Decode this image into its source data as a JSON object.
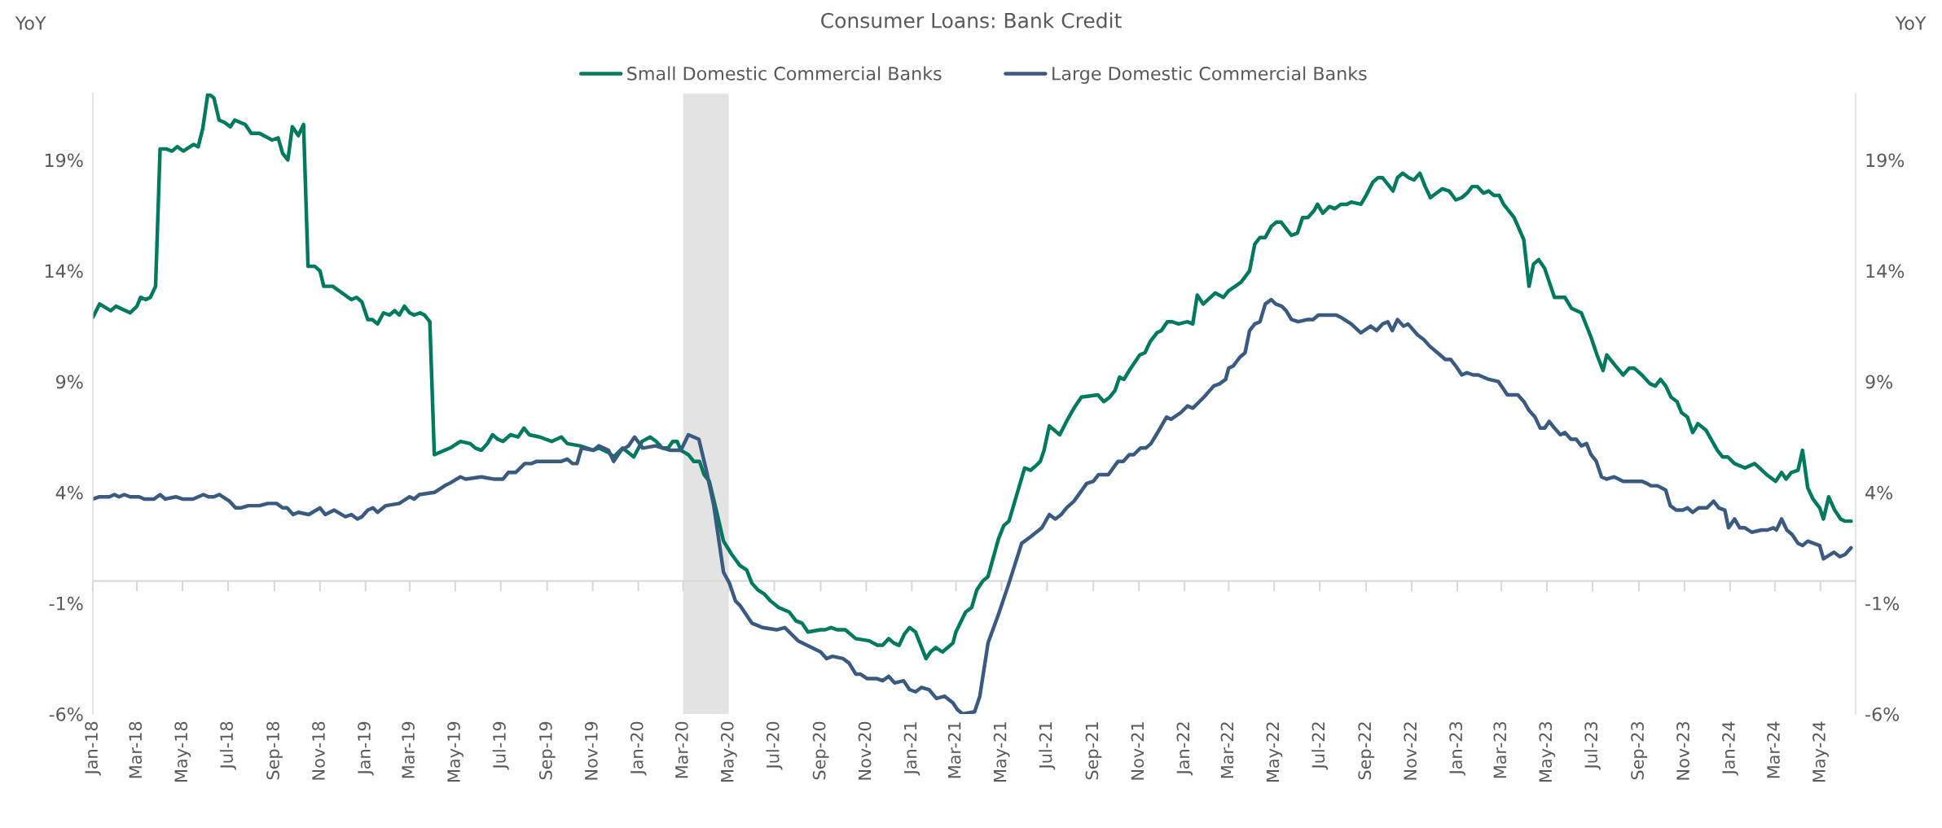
{
  "chart_data": {
    "type": "line",
    "title": "Consumer Loans: Bank Credit",
    "ylabel": "YoY",
    "y2label": "YoY",
    "xlim": [
      "2018-01-01",
      "2024-06-17"
    ],
    "xticks": [
      {
        "value": "2018-01",
        "label": "Jan-18"
      },
      {
        "value": "2018-03",
        "label": "Mar-18"
      },
      {
        "value": "2018-05",
        "label": "May-18"
      },
      {
        "value": "2018-07",
        "label": "Jul-18"
      },
      {
        "value": "2018-09",
        "label": "Sep-18"
      },
      {
        "value": "2018-11",
        "label": "Nov-18"
      },
      {
        "value": "2019-01",
        "label": "Jan-19"
      },
      {
        "value": "2019-03",
        "label": "Mar-19"
      },
      {
        "value": "2019-05",
        "label": "May-19"
      },
      {
        "value": "2019-07",
        "label": "Jul-19"
      },
      {
        "value": "2019-09",
        "label": "Sep-19"
      },
      {
        "value": "2019-11",
        "label": "Nov-19"
      },
      {
        "value": "2020-01",
        "label": "Jan-20"
      },
      {
        "value": "2020-03",
        "label": "Mar-20"
      },
      {
        "value": "2020-05",
        "label": "May-20"
      },
      {
        "value": "2020-07",
        "label": "Jul-20"
      },
      {
        "value": "2020-09",
        "label": "Sep-20"
      },
      {
        "value": "2020-11",
        "label": "Nov-20"
      },
      {
        "value": "2021-01",
        "label": "Jan-21"
      },
      {
        "value": "2021-03",
        "label": "Mar-21"
      },
      {
        "value": "2021-05",
        "label": "May-21"
      },
      {
        "value": "2021-07",
        "label": "Jul-21"
      },
      {
        "value": "2021-09",
        "label": "Sep-21"
      },
      {
        "value": "2021-11",
        "label": "Nov-21"
      },
      {
        "value": "2022-01",
        "label": "Jan-22"
      },
      {
        "value": "2022-03",
        "label": "Mar-22"
      },
      {
        "value": "2022-05",
        "label": "May-22"
      },
      {
        "value": "2022-07",
        "label": "Jul-22"
      },
      {
        "value": "2022-09",
        "label": "Sep-22"
      },
      {
        "value": "2022-11",
        "label": "Nov-22"
      },
      {
        "value": "2023-01",
        "label": "Jan-23"
      },
      {
        "value": "2023-03",
        "label": "Mar-23"
      },
      {
        "value": "2023-05",
        "label": "May-23"
      },
      {
        "value": "2023-07",
        "label": "Jul-23"
      },
      {
        "value": "2023-09",
        "label": "Sep-23"
      },
      {
        "value": "2023-11",
        "label": "Nov-23"
      },
      {
        "value": "2024-01",
        "label": "Jan-24"
      },
      {
        "value": "2024-03",
        "label": "Mar-24"
      },
      {
        "value": "2024-05",
        "label": "May-24"
      }
    ],
    "ylim": [
      -6,
      22
    ],
    "yticks": [
      {
        "value": -6,
        "label": "-6%"
      },
      {
        "value": -1,
        "label": "-1%"
      },
      {
        "value": 4,
        "label": "4%"
      },
      {
        "value": 9,
        "label": "9%"
      },
      {
        "value": 14,
        "label": "14%"
      },
      {
        "value": 19,
        "label": "19%"
      }
    ],
    "y2lim": [
      -6,
      22
    ],
    "y2ticks": [
      {
        "value": -6,
        "label": "-6%"
      },
      {
        "value": -1,
        "label": "-1%"
      },
      {
        "value": 4,
        "label": "4%"
      },
      {
        "value": 9,
        "label": "9%"
      },
      {
        "value": 14,
        "label": "14%"
      },
      {
        "value": 19,
        "label": "19%"
      }
    ],
    "bands": [
      {
        "axis": "x",
        "from": "2020-03-01",
        "to": "2020-05-01",
        "color": "#e3e3e3"
      }
    ],
    "grid": false,
    "legend": "top",
    "line_style": "solid",
    "marker": "none",
    "series": [
      {
        "name": "Small Domestic Commercial Banks",
        "color": "#007a5e",
        "x": [
          "2018-01-01",
          "2018-01-10",
          "2018-01-25",
          "2018-02-01",
          "2018-02-20",
          "2018-03-01",
          "2018-03-06",
          "2018-03-13",
          "2018-03-19",
          "2018-03-26",
          "2018-04-01",
          "2018-04-09",
          "2018-04-17",
          "2018-04-24",
          "2018-05-02",
          "2018-05-16",
          "2018-05-22",
          "2018-05-28",
          "2018-06-04",
          "2018-06-12",
          "2018-06-19",
          "2018-06-26",
          "2018-07-04",
          "2018-07-10",
          "2018-07-24",
          "2018-08-01",
          "2018-08-12",
          "2018-08-29",
          "2018-09-06",
          "2018-09-12",
          "2018-09-19",
          "2018-09-25",
          "2018-10-03",
          "2018-10-10",
          "2018-10-16",
          "2018-10-25",
          "2018-11-01",
          "2018-11-06",
          "2018-11-18",
          "2018-12-13",
          "2018-12-20",
          "2018-12-27",
          "2019-01-04",
          "2019-01-10",
          "2019-01-17",
          "2019-01-25",
          "2019-02-02",
          "2019-02-09",
          "2019-02-15",
          "2019-02-22",
          "2019-03-01",
          "2019-03-07",
          "2019-03-15",
          "2019-03-21",
          "2019-03-28",
          "2019-04-03",
          "2019-04-17",
          "2019-04-24",
          "2019-05-08",
          "2019-05-21",
          "2019-05-28",
          "2019-06-05",
          "2019-06-13",
          "2019-06-20",
          "2019-06-27",
          "2019-07-04",
          "2019-07-14",
          "2019-07-24",
          "2019-08-01",
          "2019-08-08",
          "2019-08-22",
          "2019-09-07",
          "2019-09-20",
          "2019-09-28",
          "2019-10-15",
          "2019-11-02",
          "2019-11-09",
          "2019-11-22",
          "2019-11-29",
          "2019-12-11",
          "2019-12-26",
          "2020-01-06",
          "2020-01-17",
          "2020-01-25",
          "2020-02-02",
          "2020-02-10",
          "2020-02-16",
          "2020-02-22",
          "2020-02-27",
          "2020-03-08",
          "2020-03-15",
          "2020-03-23",
          "2020-03-29",
          "2020-04-05",
          "2020-04-15",
          "2020-04-24",
          "2020-05-05",
          "2020-05-16",
          "2020-05-25",
          "2020-06-01",
          "2020-06-09",
          "2020-06-18",
          "2020-06-26",
          "2020-07-07",
          "2020-07-21",
          "2020-07-30",
          "2020-08-07",
          "2020-08-15",
          "2020-09-01",
          "2020-09-07",
          "2020-09-15",
          "2020-09-23",
          "2020-10-04",
          "2020-10-18",
          "2020-11-05",
          "2020-11-16",
          "2020-11-23",
          "2020-12-01",
          "2020-12-08",
          "2020-12-15",
          "2020-12-22",
          "2020-12-29",
          "2021-01-06",
          "2021-01-13",
          "2021-01-20",
          "2021-01-26",
          "2021-02-02",
          "2021-02-11",
          "2021-02-25",
          "2021-03-01",
          "2021-03-14",
          "2021-03-22",
          "2021-03-29",
          "2021-04-06",
          "2021-04-13",
          "2021-04-27",
          "2021-05-04",
          "2021-05-11",
          "2021-06-01",
          "2021-06-09",
          "2021-06-16",
          "2021-06-22",
          "2021-06-27",
          "2021-07-04",
          "2021-07-18",
          "2021-07-27",
          "2021-08-06",
          "2021-08-16",
          "2021-09-07",
          "2021-09-15",
          "2021-09-23",
          "2021-09-30",
          "2021-10-06",
          "2021-10-12",
          "2021-10-19",
          "2021-11-02",
          "2021-11-09",
          "2021-11-16",
          "2021-11-25",
          "2021-12-01",
          "2021-12-09",
          "2021-12-15",
          "2021-12-24",
          "2022-01-05",
          "2022-01-12",
          "2022-01-18",
          "2022-01-26",
          "2022-02-11",
          "2022-02-22",
          "2022-03-01",
          "2022-03-10",
          "2022-03-18",
          "2022-03-29",
          "2022-04-05",
          "2022-04-12",
          "2022-04-19",
          "2022-04-27",
          "2022-05-04",
          "2022-05-10",
          "2022-05-17",
          "2022-05-24",
          "2022-06-01",
          "2022-06-08",
          "2022-06-15",
          "2022-06-23",
          "2022-06-28",
          "2022-07-05",
          "2022-07-14",
          "2022-07-21",
          "2022-07-29",
          "2022-08-06",
          "2022-08-12",
          "2022-08-25",
          "2022-09-01",
          "2022-09-10",
          "2022-09-17",
          "2022-09-23",
          "2022-09-30",
          "2022-10-07",
          "2022-10-13",
          "2022-10-20",
          "2022-10-28",
          "2022-11-04",
          "2022-11-12",
          "2022-11-19",
          "2022-11-26",
          "2022-12-04",
          "2022-12-12",
          "2022-12-21",
          "2022-12-30",
          "2023-01-07",
          "2023-01-14",
          "2023-01-21",
          "2023-01-28",
          "2023-02-05",
          "2023-02-12",
          "2023-02-19",
          "2023-02-26",
          "2023-03-04",
          "2023-03-18",
          "2023-03-22",
          "2023-03-31",
          "2023-04-07",
          "2023-04-13",
          "2023-04-20",
          "2023-04-28",
          "2023-05-11",
          "2023-05-25",
          "2023-06-03",
          "2023-06-16",
          "2023-06-29",
          "2023-07-07",
          "2023-07-15",
          "2023-07-20",
          "2023-08-01",
          "2023-08-11",
          "2023-08-19",
          "2023-08-26",
          "2023-09-05",
          "2023-09-16",
          "2023-09-23",
          "2023-09-30",
          "2023-10-07",
          "2023-10-14",
          "2023-10-22",
          "2023-10-28",
          "2023-11-05",
          "2023-11-12",
          "2023-11-19",
          "2023-11-30",
          "2023-12-15",
          "2023-12-22",
          "2023-12-29",
          "2024-01-07",
          "2024-01-21",
          "2024-02-03",
          "2024-02-19",
          "2024-03-02",
          "2024-03-10",
          "2024-03-16",
          "2024-03-23",
          "2024-04-01",
          "2024-04-07",
          "2024-04-14",
          "2024-04-21",
          "2024-04-30",
          "2024-05-05",
          "2024-05-12",
          "2024-05-20",
          "2024-05-28",
          "2024-06-03",
          "2024-06-11"
        ],
        "values": [
          11.9,
          12.5,
          12.2,
          12.4,
          12.1,
          12.4,
          12.8,
          12.7,
          12.8,
          13.3,
          19.5,
          19.5,
          19.4,
          19.6,
          19.4,
          19.7,
          19.6,
          20.4,
          22.0,
          21.8,
          20.8,
          20.7,
          20.5,
          20.8,
          20.6,
          20.2,
          20.2,
          19.9,
          20.0,
          19.3,
          19.0,
          20.5,
          20.1,
          20.6,
          14.2,
          14.2,
          14.0,
          13.3,
          13.3,
          12.7,
          12.8,
          12.6,
          11.8,
          11.8,
          11.6,
          12.1,
          12.0,
          12.2,
          12.0,
          12.4,
          12.1,
          12.0,
          12.1,
          12.0,
          11.7,
          5.7,
          5.9,
          6.0,
          6.3,
          6.2,
          6.0,
          5.9,
          6.2,
          6.6,
          6.4,
          6.3,
          6.6,
          6.5,
          6.9,
          6.6,
          6.5,
          6.3,
          6.5,
          6.2,
          6.1,
          5.9,
          6.0,
          5.8,
          5.6,
          6.0,
          5.6,
          6.3,
          6.5,
          6.3,
          6.0,
          6.0,
          6.3,
          6.3,
          5.9,
          5.7,
          5.4,
          5.4,
          4.8,
          4.5,
          3.1,
          1.8,
          1.2,
          0.7,
          0.5,
          -0.1,
          -0.4,
          -0.6,
          -0.9,
          -1.2,
          -1.4,
          -1.8,
          -1.9,
          -2.3,
          -2.2,
          -2.2,
          -2.1,
          -2.2,
          -2.2,
          -2.6,
          -2.7,
          -2.9,
          -2.9,
          -2.6,
          -2.8,
          -2.9,
          -2.4,
          -2.1,
          -2.3,
          -2.9,
          -3.5,
          -3.2,
          -3.0,
          -3.2,
          -2.8,
          -2.3,
          -1.4,
          -1.2,
          -0.4,
          0.0,
          0.2,
          1.9,
          2.5,
          2.7,
          5.1,
          5.0,
          5.2,
          5.4,
          5.9,
          7.0,
          6.6,
          7.2,
          7.8,
          8.3,
          8.4,
          8.1,
          8.3,
          8.6,
          9.2,
          9.1,
          9.5,
          10.2,
          10.3,
          10.8,
          11.2,
          11.3,
          11.7,
          11.7,
          11.6,
          11.7,
          11.6,
          12.9,
          12.5,
          13.0,
          12.8,
          13.1,
          13.3,
          13.5,
          14.0,
          15.2,
          15.5,
          15.5,
          16.0,
          16.2,
          16.2,
          15.9,
          15.6,
          15.7,
          16.4,
          16.4,
          16.7,
          17.0,
          16.6,
          16.9,
          16.8,
          17.0,
          17.0,
          17.1,
          17.0,
          17.4,
          18.0,
          18.2,
          18.2,
          17.9,
          17.6,
          18.2,
          18.4,
          18.2,
          18.1,
          18.4,
          17.8,
          17.3,
          17.5,
          17.7,
          17.6,
          17.2,
          17.3,
          17.5,
          17.8,
          17.8,
          17.5,
          17.6,
          17.4,
          17.4,
          17.0,
          16.4,
          16.1,
          15.4,
          13.3,
          14.3,
          14.5,
          14.1,
          12.8,
          12.8,
          12.3,
          12.1,
          11.0,
          10.2,
          9.5,
          10.2,
          9.7,
          9.3,
          9.6,
          9.6,
          9.3,
          8.9,
          8.8,
          9.1,
          8.8,
          8.3,
          8.1,
          7.6,
          7.4,
          6.7,
          7.1,
          6.8,
          5.9,
          5.6,
          5.6,
          5.3,
          5.1,
          5.3,
          4.8,
          4.5,
          4.9,
          4.6,
          4.9,
          5.0,
          5.9,
          4.2,
          3.7,
          3.3,
          2.8,
          3.8,
          3.2,
          2.8,
          2.7,
          2.7
        ]
      },
      {
        "name": "Large Domestic Commercial Banks",
        "color": "#3a5a7f",
        "x": [
          "2018-01-01",
          "2018-01-10",
          "2018-01-23",
          "2018-01-30",
          "2018-02-05",
          "2018-02-12",
          "2018-02-20",
          "2018-03-04",
          "2018-03-11",
          "2018-03-24",
          "2018-04-01",
          "2018-04-08",
          "2018-04-22",
          "2018-05-01",
          "2018-05-15",
          "2018-05-29",
          "2018-06-05",
          "2018-06-12",
          "2018-06-19",
          "2018-07-03",
          "2018-07-11",
          "2018-07-18",
          "2018-07-28",
          "2018-08-12",
          "2018-08-23",
          "2018-09-04",
          "2018-09-12",
          "2018-09-18",
          "2018-09-26",
          "2018-10-03",
          "2018-10-17",
          "2018-11-01",
          "2018-11-08",
          "2018-11-20",
          "2018-12-05",
          "2018-12-13",
          "2018-12-21",
          "2018-12-27",
          "2019-01-04",
          "2019-01-11",
          "2019-01-17",
          "2019-01-28",
          "2019-02-15",
          "2019-03-01",
          "2019-03-07",
          "2019-03-14",
          "2019-04-03",
          "2019-04-17",
          "2019-04-23",
          "2019-05-08",
          "2019-05-15",
          "2019-06-05",
          "2019-06-21",
          "2019-07-04",
          "2019-07-11",
          "2019-07-21",
          "2019-08-02",
          "2019-08-11",
          "2019-08-18",
          "2019-08-28",
          "2019-09-07",
          "2019-09-20",
          "2019-09-28",
          "2019-10-05",
          "2019-10-11",
          "2019-10-17",
          "2019-11-02",
          "2019-11-09",
          "2019-11-22",
          "2019-11-29",
          "2019-12-09",
          "2019-12-19",
          "2019-12-27",
          "2020-01-07",
          "2020-01-24",
          "2020-02-03",
          "2020-02-13",
          "2020-02-27",
          "2020-03-08",
          "2020-03-22",
          "2020-04-01",
          "2020-04-11",
          "2020-04-24",
          "2020-05-02",
          "2020-05-10",
          "2020-05-16",
          "2020-06-01",
          "2020-06-15",
          "2020-07-04",
          "2020-07-15",
          "2020-08-02",
          "2020-09-01",
          "2020-09-09",
          "2020-09-17",
          "2020-10-01",
          "2020-10-09",
          "2020-10-18",
          "2020-10-24",
          "2020-11-02",
          "2020-11-15",
          "2020-11-23",
          "2020-12-01",
          "2020-12-09",
          "2020-12-21",
          "2020-12-29",
          "2021-01-06",
          "2021-01-14",
          "2021-01-24",
          "2021-02-03",
          "2021-02-14",
          "2021-02-25",
          "2021-03-03",
          "2021-03-10",
          "2021-03-26",
          "2021-04-02",
          "2021-04-13",
          "2021-04-27",
          "2021-05-11",
          "2021-05-28",
          "2021-06-09",
          "2021-06-24",
          "2021-07-04",
          "2021-07-12",
          "2021-07-20",
          "2021-07-27",
          "2021-08-06",
          "2021-08-23",
          "2021-09-01",
          "2021-09-08",
          "2021-09-16",
          "2021-09-21",
          "2021-10-04",
          "2021-10-11",
          "2021-10-19",
          "2021-10-25",
          "2021-11-03",
          "2021-11-10",
          "2021-11-17",
          "2021-11-26",
          "2021-12-08",
          "2021-12-14",
          "2021-12-27",
          "2022-01-05",
          "2022-01-12",
          "2022-01-27",
          "2022-02-09",
          "2022-02-17",
          "2022-02-25",
          "2022-03-01",
          "2022-03-07",
          "2022-03-16",
          "2022-03-23",
          "2022-03-29",
          "2022-04-05",
          "2022-04-12",
          "2022-04-19",
          "2022-04-27",
          "2022-05-03",
          "2022-05-11",
          "2022-05-17",
          "2022-05-24",
          "2022-06-02",
          "2022-06-15",
          "2022-06-22",
          "2022-06-29",
          "2022-07-08",
          "2022-07-16",
          "2022-07-23",
          "2022-07-29",
          "2022-08-12",
          "2022-08-25",
          "2022-09-07",
          "2022-09-15",
          "2022-09-23",
          "2022-09-30",
          "2022-10-06",
          "2022-10-13",
          "2022-10-21",
          "2022-10-27",
          "2022-11-09",
          "2022-11-17",
          "2022-11-25",
          "2022-12-09",
          "2022-12-16",
          "2022-12-23",
          "2022-12-30",
          "2023-01-07",
          "2023-01-14",
          "2023-01-22",
          "2023-01-29",
          "2023-02-12",
          "2023-02-25",
          "2023-03-03",
          "2023-03-09",
          "2023-03-23",
          "2023-03-31",
          "2023-04-07",
          "2023-04-15",
          "2023-04-22",
          "2023-04-28",
          "2023-05-04",
          "2023-05-11",
          "2023-05-19",
          "2023-05-25",
          "2023-06-02",
          "2023-06-09",
          "2023-06-16",
          "2023-06-23",
          "2023-06-29",
          "2023-07-06",
          "2023-07-13",
          "2023-07-20",
          "2023-07-30",
          "2023-08-11",
          "2023-09-05",
          "2023-09-12",
          "2023-09-17",
          "2023-09-26",
          "2023-10-07",
          "2023-10-13",
          "2023-10-21",
          "2023-10-30",
          "2023-11-05",
          "2023-11-12",
          "2023-11-20",
          "2023-12-01",
          "2023-12-10",
          "2023-12-17",
          "2023-12-25",
          "2023-12-30",
          "2024-01-07",
          "2024-01-14",
          "2024-01-21",
          "2024-01-30",
          "2024-02-12",
          "2024-02-20",
          "2024-02-28",
          "2024-03-03",
          "2024-03-10",
          "2024-03-17",
          "2024-03-24",
          "2024-04-01",
          "2024-04-07",
          "2024-04-14",
          "2024-04-30",
          "2024-05-05",
          "2024-05-19",
          "2024-05-27",
          "2024-06-03",
          "2024-06-11"
        ],
        "values": [
          3.7,
          3.8,
          3.8,
          3.9,
          3.8,
          3.9,
          3.8,
          3.8,
          3.7,
          3.7,
          3.9,
          3.7,
          3.8,
          3.7,
          3.7,
          3.9,
          3.8,
          3.8,
          3.9,
          3.6,
          3.3,
          3.3,
          3.4,
          3.4,
          3.5,
          3.5,
          3.3,
          3.3,
          3.0,
          3.1,
          3.0,
          3.3,
          3.0,
          3.2,
          2.9,
          3.0,
          2.8,
          2.9,
          3.2,
          3.3,
          3.1,
          3.4,
          3.5,
          3.8,
          3.7,
          3.9,
          4.0,
          4.3,
          4.4,
          4.7,
          4.6,
          4.7,
          4.6,
          4.6,
          4.9,
          4.9,
          5.3,
          5.3,
          5.4,
          5.4,
          5.4,
          5.4,
          5.5,
          5.3,
          5.3,
          6.0,
          5.9,
          6.1,
          5.9,
          5.4,
          5.9,
          6.1,
          6.5,
          6.0,
          6.1,
          6.0,
          5.9,
          5.9,
          6.6,
          6.4,
          5.0,
          3.4,
          0.4,
          -0.1,
          -0.9,
          -1.1,
          -1.9,
          -2.1,
          -2.2,
          -2.1,
          -2.7,
          -3.2,
          -3.5,
          -3.4,
          -3.5,
          -3.7,
          -4.2,
          -4.2,
          -4.4,
          -4.4,
          -4.5,
          -4.3,
          -4.6,
          -4.5,
          -4.9,
          -5.0,
          -4.8,
          -4.9,
          -5.3,
          -5.2,
          -5.5,
          -5.8,
          -6.0,
          -5.9,
          -5.2,
          -2.8,
          -1.5,
          -0.1,
          1.7,
          2.0,
          2.4,
          3.0,
          2.8,
          3.0,
          3.3,
          3.6,
          4.4,
          4.5,
          4.8,
          4.8,
          4.8,
          5.4,
          5.4,
          5.7,
          5.7,
          6.0,
          6.0,
          6.2,
          6.7,
          7.4,
          7.3,
          7.6,
          7.9,
          7.8,
          8.3,
          8.8,
          8.9,
          9.1,
          9.6,
          9.7,
          10.1,
          10.3,
          11.3,
          11.6,
          11.7,
          12.5,
          12.7,
          12.5,
          12.4,
          12.2,
          11.8,
          11.7,
          11.8,
          11.8,
          12.0,
          12.0,
          12.0,
          12.0,
          11.9,
          11.6,
          11.2,
          11.5,
          11.3,
          11.6,
          11.7,
          11.3,
          11.8,
          11.5,
          11.6,
          11.1,
          10.9,
          10.6,
          10.2,
          10.0,
          10.0,
          9.7,
          9.3,
          9.4,
          9.3,
          9.3,
          9.1,
          9.0,
          8.7,
          8.4,
          8.4,
          8.1,
          7.7,
          7.4,
          6.9,
          6.9,
          7.2,
          6.9,
          6.6,
          6.7,
          6.4,
          6.4,
          6.1,
          6.2,
          5.7,
          5.4,
          4.7,
          4.6,
          4.7,
          4.5,
          4.5,
          4.4,
          4.3,
          4.3,
          4.1,
          3.4,
          3.2,
          3.2,
          3.3,
          3.1,
          3.3,
          3.3,
          3.6,
          3.3,
          3.2,
          2.4,
          2.8,
          2.4,
          2.4,
          2.2,
          2.3,
          2.3,
          2.4,
          2.3,
          2.8,
          2.3,
          2.1,
          1.7,
          1.6,
          1.8,
          1.6,
          1.0,
          1.3,
          1.1,
          1.2,
          1.5
        ]
      }
    ]
  }
}
